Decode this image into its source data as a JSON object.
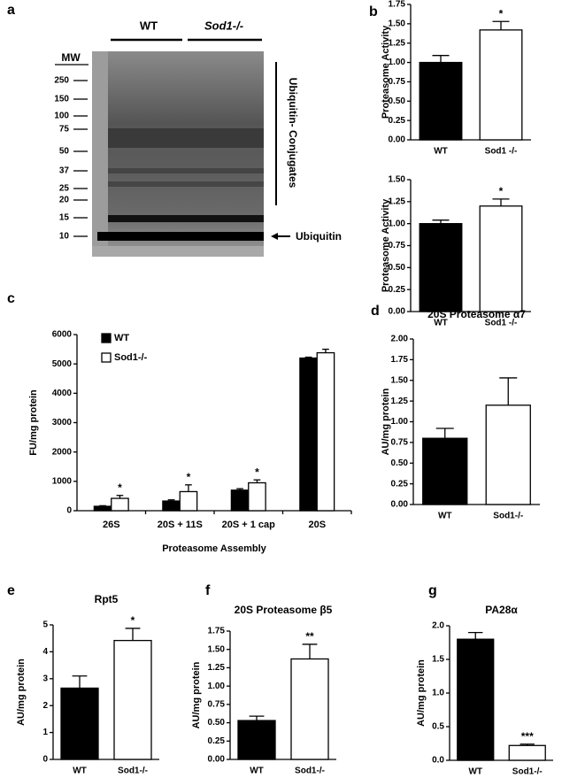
{
  "panel_labels": [
    "a",
    "b",
    "c",
    "d",
    "e",
    "f",
    "g"
  ],
  "blot": {
    "lanes": [
      "WT",
      "Sod1-/-"
    ],
    "mw_title": "MW",
    "mw_markers": [
      "250",
      "150",
      "100",
      "75",
      "50",
      "37",
      "25",
      "20",
      "15",
      "10"
    ],
    "bracket_label": "Ubiquitin- Conjugates",
    "arrow_label": "Ubiquitin"
  },
  "chart_data": [
    {
      "type": "bar",
      "y_label": "Proteasome Activity",
      "categories": [
        "WT",
        "Sod1 -/-"
      ],
      "values": [
        1.0,
        1.42
      ],
      "errors": [
        0.09,
        0.11
      ],
      "colors": [
        "#000000",
        "#ffffff"
      ],
      "annotations": [
        null,
        "*"
      ],
      "ylim": [
        0,
        1.75
      ],
      "yticks": [
        {
          "value": 0,
          "label": "0.00"
        },
        {
          "value": 0.25,
          "label": "0.25"
        },
        {
          "value": 0.5,
          "label": "0.50"
        },
        {
          "value": 0.75,
          "label": "0.75"
        },
        {
          "value": 1,
          "label": "1.00"
        },
        {
          "value": 1.25,
          "label": "1.25"
        },
        {
          "value": 1.5,
          "label": "1.50"
        },
        {
          "value": 1.75,
          "label": "1.75"
        }
      ]
    },
    {
      "type": "bar",
      "y_label": "Proteasome Activity",
      "categories": [
        "WT",
        "Sod1 -/-"
      ],
      "values": [
        1.0,
        1.2
      ],
      "errors": [
        0.04,
        0.08
      ],
      "colors": [
        "#000000",
        "#ffffff"
      ],
      "annotations": [
        null,
        "*"
      ],
      "ylim": [
        0,
        1.5
      ],
      "yticks": [
        {
          "value": 0,
          "label": "0.00"
        },
        {
          "value": 0.25,
          "label": "0.25"
        },
        {
          "value": 0.5,
          "label": "0.50"
        },
        {
          "value": 0.75,
          "label": "0.75"
        },
        {
          "value": 1,
          "label": "1.00"
        },
        {
          "value": 1.25,
          "label": "1.25"
        },
        {
          "value": 1.5,
          "label": "1.50"
        }
      ]
    },
    {
      "type": "grouped-bar",
      "y_label": "FU/mg protein",
      "x_label": "Proteasome Assembly",
      "categories": [
        "26S",
        "20S + 11S",
        "20S + 1 cap",
        "20S"
      ],
      "series": [
        {
          "name": "WT",
          "color": "#000000",
          "values": [
            150,
            330,
            700,
            5200
          ],
          "errors": [
            20,
            40,
            50,
            30
          ]
        },
        {
          "name": "Sod1-/-",
          "color": "#ffffff",
          "values": [
            420,
            650,
            950,
            5380
          ],
          "errors": [
            100,
            230,
            100,
            120
          ],
          "annotations": [
            "*",
            "*",
            "*",
            null
          ]
        }
      ],
      "ylim": [
        0,
        6000
      ],
      "yticks": [
        0,
        1000,
        2000,
        3000,
        4000,
        5000,
        6000
      ],
      "legend": "top-left"
    },
    {
      "type": "bar",
      "title": "20S Proteasome α7",
      "y_label": "AU/mg protein",
      "categories": [
        "WT",
        "Sod1-/-"
      ],
      "values": [
        0.8,
        1.2
      ],
      "errors": [
        0.12,
        0.33
      ],
      "colors": [
        "#000000",
        "#ffffff"
      ],
      "ylim": [
        0,
        2
      ],
      "yticks": [
        {
          "value": 0,
          "label": "0.00"
        },
        {
          "value": 0.25,
          "label": "0.25"
        },
        {
          "value": 0.5,
          "label": "0.50"
        },
        {
          "value": 0.75,
          "label": "0.75"
        },
        {
          "value": 1,
          "label": "1.00"
        },
        {
          "value": 1.25,
          "label": "1.25"
        },
        {
          "value": 1.5,
          "label": "1.50"
        },
        {
          "value": 1.75,
          "label": "1.75"
        },
        {
          "value": 2,
          "label": "2.00"
        }
      ]
    },
    {
      "type": "bar",
      "title": "Rpt5",
      "y_label": "AU/mg protein",
      "categories": [
        "WT",
        "Sod1-/-"
      ],
      "values": [
        2.65,
        4.42
      ],
      "errors": [
        0.45,
        0.45
      ],
      "colors": [
        "#000000",
        "#ffffff"
      ],
      "annotations": [
        null,
        "*"
      ],
      "ylim": [
        0,
        5
      ],
      "yticks": [
        0,
        1,
        2,
        3,
        4,
        5
      ]
    },
    {
      "type": "bar",
      "title": "20S Proteasome β5",
      "y_label": "AU/mg protein",
      "categories": [
        "WT",
        "Sod1-/-"
      ],
      "values": [
        0.53,
        1.37
      ],
      "errors": [
        0.06,
        0.2
      ],
      "colors": [
        "#000000",
        "#ffffff"
      ],
      "annotations": [
        null,
        "**"
      ],
      "ylim": [
        0,
        1.75
      ],
      "yticks": [
        {
          "value": 0,
          "label": "0.00"
        },
        {
          "value": 0.25,
          "label": "0.25"
        },
        {
          "value": 0.5,
          "label": "0.50"
        },
        {
          "value": 0.75,
          "label": "0.75"
        },
        {
          "value": 1,
          "label": "1.00"
        },
        {
          "value": 1.25,
          "label": "1.25"
        },
        {
          "value": 1.5,
          "label": "1.50"
        },
        {
          "value": 1.75,
          "label": "1.75"
        }
      ]
    },
    {
      "type": "bar",
      "title": "PA28α",
      "y_label": "AU/mg protein",
      "categories": [
        "WT",
        "Sod1-/-"
      ],
      "values": [
        1.8,
        0.22
      ],
      "errors": [
        0.1,
        0.02
      ],
      "colors": [
        "#000000",
        "#ffffff"
      ],
      "annotations": [
        null,
        "***"
      ],
      "ylim": [
        0,
        2
      ],
      "yticks": [
        {
          "value": 0,
          "label": "0.0"
        },
        0.5,
        {
          "value": 1,
          "label": "1.0"
        },
        1.5,
        {
          "value": 2,
          "label": "2.0"
        }
      ]
    }
  ]
}
